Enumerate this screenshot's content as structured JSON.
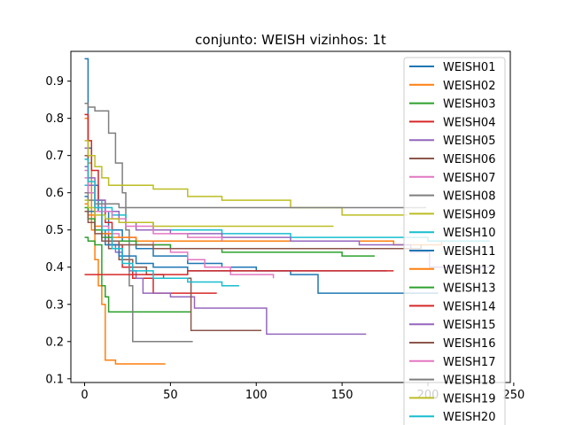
{
  "chart_data": {
    "type": "line",
    "title": "conjunto: WEISH vizinhos: 1t",
    "xlabel": "",
    "ylabel": "",
    "xlim": [
      -8,
      248
    ],
    "ylim": [
      0.09,
      0.98
    ],
    "xticks": [
      "0",
      "50",
      "100",
      "150",
      "200",
      "250"
    ],
    "xtick_values": [
      0,
      50,
      100,
      150,
      200,
      250
    ],
    "yticks": [
      "0.1",
      "0.2",
      "0.3",
      "0.4",
      "0.5",
      "0.6",
      "0.7",
      "0.8",
      "0.9"
    ],
    "ytick_values": [
      0.1,
      0.2,
      0.3,
      0.4,
      0.5,
      0.6,
      0.7,
      0.8,
      0.9
    ],
    "grid": false,
    "legend_position": "top-right",
    "series": [
      {
        "name": "WEISH01",
        "color": "#1f77b4",
        "points": [
          [
            0,
            0.96
          ],
          [
            2,
            0.72
          ],
          [
            4,
            0.62
          ],
          [
            8,
            0.55
          ],
          [
            14,
            0.5
          ],
          [
            22,
            0.47
          ],
          [
            30,
            0.45
          ],
          [
            40,
            0.43
          ],
          [
            60,
            0.41
          ],
          [
            80,
            0.4
          ],
          [
            100,
            0.39
          ],
          [
            120,
            0.38
          ],
          [
            134,
            0.38
          ],
          [
            136,
            0.33
          ],
          [
            160,
            0.33
          ],
          [
            206,
            0.33
          ]
        ]
      },
      {
        "name": "WEISH02",
        "color": "#ff7f0e",
        "points": [
          [
            0,
            0.8
          ],
          [
            2,
            0.68
          ],
          [
            4,
            0.5
          ],
          [
            6,
            0.42
          ],
          [
            8,
            0.35
          ],
          [
            10,
            0.3
          ],
          [
            12,
            0.15
          ],
          [
            16,
            0.15
          ],
          [
            18,
            0.14
          ],
          [
            30,
            0.14
          ],
          [
            47,
            0.14
          ]
        ]
      },
      {
        "name": "WEISH03",
        "color": "#2ca02c",
        "points": [
          [
            0,
            0.48
          ],
          [
            2,
            0.47
          ],
          [
            6,
            0.46
          ],
          [
            10,
            0.35
          ],
          [
            12,
            0.32
          ],
          [
            14,
            0.28
          ],
          [
            20,
            0.28
          ],
          [
            40,
            0.28
          ],
          [
            62,
            0.28
          ]
        ]
      },
      {
        "name": "WEISH04",
        "color": "#d62728",
        "points": [
          [
            0,
            0.81
          ],
          [
            2,
            0.74
          ],
          [
            4,
            0.66
          ],
          [
            8,
            0.58
          ],
          [
            12,
            0.52
          ],
          [
            16,
            0.46
          ],
          [
            22,
            0.4
          ],
          [
            28,
            0.37
          ],
          [
            40,
            0.33
          ],
          [
            60,
            0.33
          ],
          [
            77,
            0.33
          ]
        ]
      },
      {
        "name": "WEISH05",
        "color": "#9467bd",
        "points": [
          [
            0,
            0.72
          ],
          [
            2,
            0.64
          ],
          [
            6,
            0.56
          ],
          [
            10,
            0.5
          ],
          [
            14,
            0.46
          ],
          [
            18,
            0.44
          ],
          [
            22,
            0.42
          ],
          [
            26,
            0.39
          ],
          [
            30,
            0.37
          ],
          [
            34,
            0.33
          ],
          [
            40,
            0.33
          ],
          [
            50,
            0.32
          ],
          [
            62,
            0.32
          ],
          [
            64,
            0.29
          ],
          [
            104,
            0.29
          ],
          [
            106,
            0.22
          ],
          [
            140,
            0.22
          ],
          [
            164,
            0.22
          ]
        ]
      },
      {
        "name": "WEISH06",
        "color": "#8c564b",
        "points": [
          [
            0,
            0.7
          ],
          [
            2,
            0.62
          ],
          [
            6,
            0.55
          ],
          [
            10,
            0.49
          ],
          [
            14,
            0.45
          ],
          [
            20,
            0.42
          ],
          [
            28,
            0.4
          ],
          [
            36,
            0.38
          ],
          [
            46,
            0.37
          ],
          [
            60,
            0.37
          ],
          [
            62,
            0.23
          ],
          [
            80,
            0.23
          ],
          [
            103,
            0.23
          ]
        ]
      },
      {
        "name": "WEISH07",
        "color": "#e377c2",
        "points": [
          [
            0,
            0.66
          ],
          [
            2,
            0.6
          ],
          [
            6,
            0.55
          ],
          [
            10,
            0.51
          ],
          [
            14,
            0.49
          ],
          [
            20,
            0.48
          ],
          [
            30,
            0.47
          ],
          [
            40,
            0.46
          ],
          [
            50,
            0.44
          ],
          [
            60,
            0.42
          ],
          [
            70,
            0.4
          ],
          [
            85,
            0.38
          ],
          [
            110,
            0.37
          ]
        ]
      },
      {
        "name": "WEISH08",
        "color": "#7f7f7f",
        "points": [
          [
            0,
            0.84
          ],
          [
            2,
            0.83
          ],
          [
            6,
            0.82
          ],
          [
            12,
            0.82
          ],
          [
            14,
            0.76
          ],
          [
            18,
            0.68
          ],
          [
            22,
            0.6
          ],
          [
            24,
            0.5
          ],
          [
            26,
            0.35
          ],
          [
            28,
            0.2
          ],
          [
            40,
            0.2
          ],
          [
            63,
            0.2
          ]
        ]
      },
      {
        "name": "WEISH09",
        "color": "#bcbd22",
        "points": [
          [
            0,
            0.74
          ],
          [
            2,
            0.7
          ],
          [
            6,
            0.67
          ],
          [
            10,
            0.64
          ],
          [
            14,
            0.62
          ],
          [
            20,
            0.62
          ],
          [
            40,
            0.61
          ],
          [
            60,
            0.59
          ],
          [
            80,
            0.58
          ],
          [
            100,
            0.58
          ],
          [
            120,
            0.56
          ],
          [
            150,
            0.54
          ],
          [
            188,
            0.54
          ]
        ]
      },
      {
        "name": "WEISH10",
        "color": "#17becf",
        "points": [
          [
            0,
            0.62
          ],
          [
            2,
            0.6
          ],
          [
            6,
            0.58
          ],
          [
            10,
            0.56
          ],
          [
            16,
            0.54
          ],
          [
            24,
            0.52
          ],
          [
            40,
            0.5
          ],
          [
            80,
            0.49
          ],
          [
            120,
            0.48
          ],
          [
            160,
            0.48
          ],
          [
            200,
            0.47
          ],
          [
            236,
            0.47
          ]
        ]
      },
      {
        "name": "WEISH11",
        "color": "#1f77b4",
        "points": [
          [
            0,
            0.59
          ],
          [
            2,
            0.55
          ],
          [
            6,
            0.5
          ],
          [
            12,
            0.46
          ],
          [
            20,
            0.43
          ],
          [
            30,
            0.41
          ],
          [
            40,
            0.4
          ],
          [
            60,
            0.39
          ],
          [
            90,
            0.39
          ],
          [
            120,
            0.39
          ],
          [
            150,
            0.39
          ],
          [
            176,
            0.39
          ]
        ]
      },
      {
        "name": "WEISH12",
        "color": "#ff7f0e",
        "points": [
          [
            0,
            0.57
          ],
          [
            2,
            0.54
          ],
          [
            6,
            0.51
          ],
          [
            10,
            0.49
          ],
          [
            16,
            0.48
          ],
          [
            30,
            0.47
          ],
          [
            60,
            0.47
          ],
          [
            100,
            0.47
          ],
          [
            140,
            0.47
          ],
          [
            180,
            0.46
          ],
          [
            200,
            0.46
          ],
          [
            208,
            0.47
          ]
        ]
      },
      {
        "name": "WEISH13",
        "color": "#2ca02c",
        "points": [
          [
            0,
            0.56
          ],
          [
            2,
            0.53
          ],
          [
            6,
            0.5
          ],
          [
            10,
            0.48
          ],
          [
            16,
            0.47
          ],
          [
            30,
            0.46
          ],
          [
            50,
            0.45
          ],
          [
            80,
            0.44
          ],
          [
            120,
            0.44
          ],
          [
            150,
            0.43
          ],
          [
            169,
            0.43
          ]
        ]
      },
      {
        "name": "WEISH14",
        "color": "#d62728",
        "points": [
          [
            0,
            0.38
          ],
          [
            10,
            0.38
          ],
          [
            20,
            0.38
          ],
          [
            40,
            0.38
          ],
          [
            60,
            0.39
          ],
          [
            100,
            0.39
          ],
          [
            140,
            0.39
          ],
          [
            180,
            0.39
          ]
        ]
      },
      {
        "name": "WEISH15",
        "color": "#9467bd",
        "points": [
          [
            0,
            0.67
          ],
          [
            2,
            0.62
          ],
          [
            6,
            0.58
          ],
          [
            12,
            0.55
          ],
          [
            20,
            0.52
          ],
          [
            30,
            0.5
          ],
          [
            50,
            0.49
          ],
          [
            80,
            0.48
          ],
          [
            120,
            0.47
          ],
          [
            160,
            0.46
          ],
          [
            190,
            0.44
          ],
          [
            200,
            0.44
          ],
          [
            201,
            0.4
          ],
          [
            236,
            0.4
          ]
        ]
      },
      {
        "name": "WEISH16",
        "color": "#8c564b",
        "points": [
          [
            0,
            0.55
          ],
          [
            2,
            0.52
          ],
          [
            6,
            0.49
          ],
          [
            10,
            0.47
          ],
          [
            20,
            0.46
          ],
          [
            40,
            0.45
          ],
          [
            80,
            0.45
          ],
          [
            120,
            0.45
          ],
          [
            160,
            0.45
          ],
          [
            196,
            0.46
          ]
        ]
      },
      {
        "name": "WEISH17",
        "color": "#e377c2",
        "points": [
          [
            0,
            0.64
          ],
          [
            2,
            0.6
          ],
          [
            6,
            0.57
          ],
          [
            10,
            0.55
          ],
          [
            16,
            0.53
          ],
          [
            24,
            0.51
          ],
          [
            40,
            0.49
          ],
          [
            60,
            0.48
          ],
          [
            80,
            0.47
          ]
        ]
      },
      {
        "name": "WEISH18",
        "color": "#7f7f7f",
        "points": [
          [
            0,
            0.6
          ],
          [
            2,
            0.58
          ],
          [
            6,
            0.57
          ],
          [
            14,
            0.57
          ],
          [
            20,
            0.56
          ],
          [
            40,
            0.56
          ],
          [
            80,
            0.56
          ],
          [
            120,
            0.56
          ],
          [
            160,
            0.56
          ],
          [
            199,
            0.56
          ]
        ]
      },
      {
        "name": "WEISH19",
        "color": "#bcbd22",
        "points": [
          [
            0,
            0.58
          ],
          [
            2,
            0.56
          ],
          [
            6,
            0.54
          ],
          [
            12,
            0.53
          ],
          [
            20,
            0.52
          ],
          [
            40,
            0.51
          ],
          [
            70,
            0.51
          ],
          [
            100,
            0.51
          ],
          [
            145,
            0.51
          ]
        ]
      },
      {
        "name": "WEISH20",
        "color": "#17becf",
        "points": [
          [
            0,
            0.69
          ],
          [
            2,
            0.63
          ],
          [
            6,
            0.56
          ],
          [
            10,
            0.5
          ],
          [
            16,
            0.45
          ],
          [
            22,
            0.41
          ],
          [
            28,
            0.39
          ],
          [
            40,
            0.37
          ],
          [
            60,
            0.36
          ],
          [
            80,
            0.35
          ],
          [
            90,
            0.35
          ]
        ]
      }
    ]
  }
}
